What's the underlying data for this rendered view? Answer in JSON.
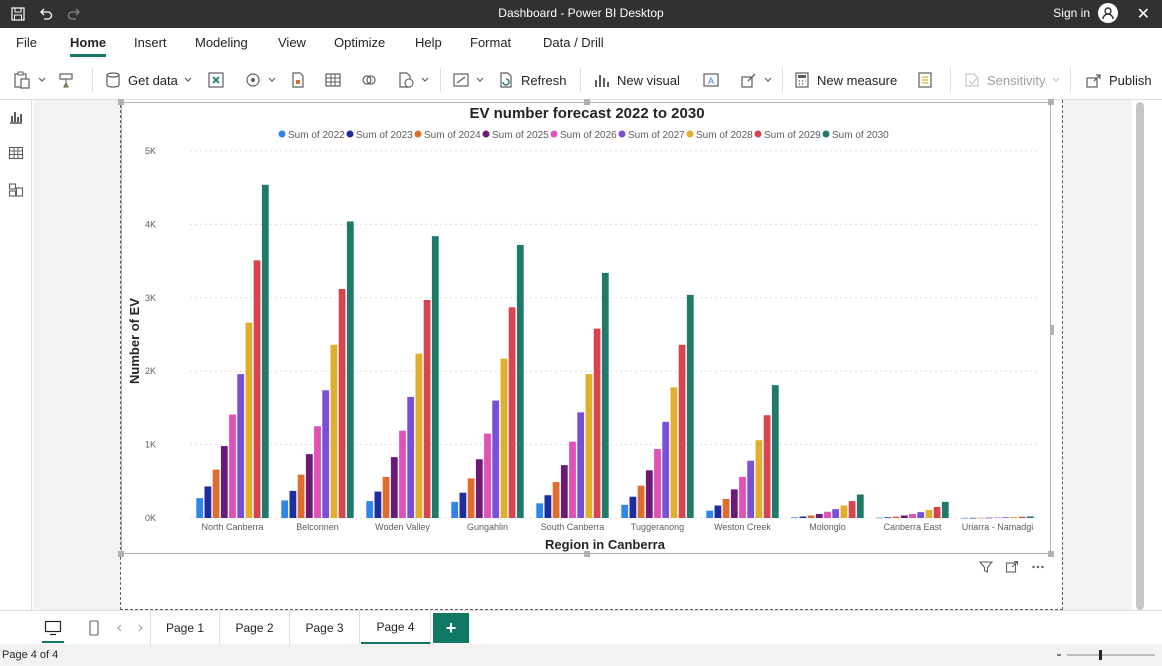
{
  "window": {
    "title": "Dashboard - Power BI Desktop",
    "sign_in": "Sign in"
  },
  "menu": {
    "tabs": [
      "File",
      "Home",
      "Insert",
      "Modeling",
      "View",
      "Optimize",
      "Help",
      "Format",
      "Data / Drill"
    ],
    "active": "Home"
  },
  "ribbon": {
    "get_data": "Get data",
    "refresh": "Refresh",
    "new_visual": "New visual",
    "new_measure": "New measure",
    "sensitivity": "Sensitivity",
    "publish": "Publish"
  },
  "pages": {
    "tabs": [
      "Page 1",
      "Page 2",
      "Page 3",
      "Page 4"
    ],
    "active": "Page 4",
    "add_label": "+"
  },
  "status": {
    "page_indicator": "Page 4 of 4"
  },
  "colors": {
    "accent": "#117865",
    "titlebar": "#323130"
  },
  "chart_data": {
    "type": "bar",
    "title": "EV number forecast 2022 to 2030",
    "xlabel": "Region in Canberra",
    "ylabel": "Number of EV",
    "ylim": [
      0,
      5000
    ],
    "y_ticks": [
      0,
      1000,
      2000,
      3000,
      4000,
      5000
    ],
    "y_tick_labels": [
      "0K",
      "1K",
      "2K",
      "3K",
      "4K",
      "5K"
    ],
    "grid": true,
    "legend_position": "top",
    "categories": [
      "North Canberra",
      "Belconnen",
      "Woden Valley",
      "Gungahlin",
      "South Canberra",
      "Tuggeranong",
      "Weston Creek",
      "Molonglo",
      "Canberra East",
      "Uriarra - Namadgi"
    ],
    "series": [
      {
        "name": "Sum of 2022",
        "color": "#2f86e8",
        "values": [
          270,
          240,
          230,
          220,
          200,
          180,
          100,
          10,
          5,
          1
        ]
      },
      {
        "name": "Sum of 2023",
        "color": "#1f2e9e",
        "values": [
          430,
          370,
          360,
          345,
          310,
          290,
          170,
          20,
          10,
          2
        ]
      },
      {
        "name": "Sum of 2024",
        "color": "#e06d2d",
        "values": [
          660,
          590,
          560,
          540,
          490,
          440,
          260,
          35,
          20,
          3
        ]
      },
      {
        "name": "Sum of 2025",
        "color": "#6b1a78",
        "values": [
          980,
          870,
          830,
          800,
          720,
          650,
          390,
          55,
          35,
          5
        ]
      },
      {
        "name": "Sum of 2026",
        "color": "#e052b8",
        "values": [
          1410,
          1250,
          1190,
          1150,
          1040,
          940,
          560,
          85,
          55,
          7
        ]
      },
      {
        "name": "Sum of 2027",
        "color": "#7a4fd6",
        "values": [
          1960,
          1740,
          1650,
          1600,
          1440,
          1310,
          780,
          120,
          80,
          10
        ]
      },
      {
        "name": "Sum of 2028",
        "color": "#e0b02d",
        "values": [
          2660,
          2360,
          2240,
          2170,
          1960,
          1780,
          1060,
          170,
          110,
          13
        ]
      },
      {
        "name": "Sum of 2029",
        "color": "#d64550",
        "values": [
          3510,
          3120,
          2970,
          2870,
          2580,
          2360,
          1400,
          230,
          150,
          17
        ]
      },
      {
        "name": "Sum of 2030",
        "color": "#1f7a6c",
        "values": [
          4540,
          4040,
          3840,
          3720,
          3340,
          3040,
          1810,
          320,
          220,
          22
        ]
      }
    ]
  }
}
